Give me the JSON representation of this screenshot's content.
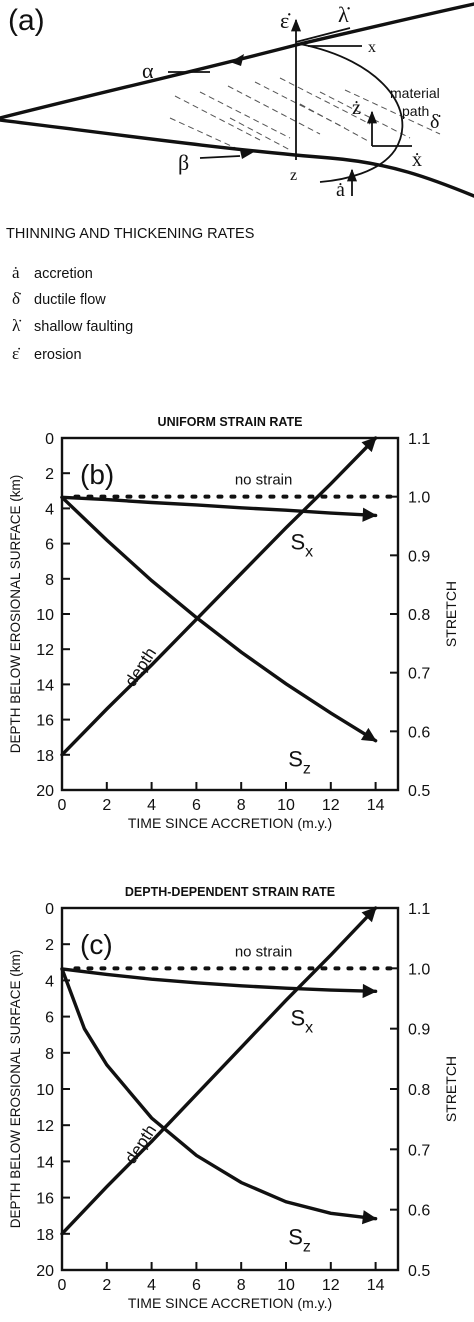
{
  "panel_a": {
    "label": "(a)",
    "symbols": {
      "epsilon_dot": "ε̇",
      "lambda_dot": "λ̇",
      "alpha": "α",
      "beta": "β",
      "z_dot": "ż",
      "x_dot": "ẋ",
      "x": "x",
      "z": "z",
      "a_dot": "ȧ",
      "delta_dot": "δ̇"
    },
    "material_path": [
      "material",
      "path"
    ]
  },
  "legend": {
    "title": "THINNING AND THICKENING RATES",
    "items": [
      {
        "symbol": "ȧ",
        "label": "accretion"
      },
      {
        "symbol": "δ̇",
        "label": "ductile flow"
      },
      {
        "symbol": "λ̇",
        "label": "shallow faulting"
      },
      {
        "symbol": "ε̇",
        "label": "erosion"
      }
    ]
  },
  "chart_data": [
    {
      "panel": "(b)",
      "type": "line",
      "title": "UNIFORM STRAIN RATE",
      "xlabel": "TIME SINCE ACCRETION (m.y.)",
      "ylabel": "DEPTH BELOW EROSIONAL SURFACE (km)",
      "y2label": "STRETCH",
      "xlim": [
        0,
        15
      ],
      "ylim": [
        20,
        0
      ],
      "y2lim": [
        0.5,
        1.1
      ],
      "xticks": [
        "0",
        "2",
        "4",
        "6",
        "8",
        "10",
        "12",
        "14"
      ],
      "yticks": [
        "0",
        "2",
        "4",
        "6",
        "8",
        "10",
        "12",
        "14",
        "16",
        "18",
        "20"
      ],
      "y2ticks": [
        "0.5",
        "0.6",
        "0.7",
        "0.8",
        "0.9",
        "1.0",
        "1.1"
      ],
      "reference": {
        "name": "no strain",
        "axis": "right",
        "value": 1.0
      },
      "series": [
        {
          "name": "depth",
          "axis": "left",
          "x": [
            0,
            2,
            4,
            6,
            8,
            10,
            12,
            14
          ],
          "y": [
            18,
            15.4,
            12.9,
            10.3,
            7.7,
            5.1,
            2.6,
            0
          ]
        },
        {
          "name": "Sx",
          "label_main": "S",
          "label_sub": "x",
          "axis": "right",
          "x": [
            0,
            2,
            4,
            6,
            8,
            10,
            12,
            14
          ],
          "y": [
            0.999,
            0.995,
            0.99,
            0.986,
            0.981,
            0.977,
            0.972,
            0.968
          ]
        },
        {
          "name": "Sz",
          "label_main": "S",
          "label_sub": "z",
          "axis": "right",
          "x": [
            0,
            2,
            4,
            6,
            8,
            10,
            12,
            14
          ],
          "y": [
            0.999,
            0.926,
            0.857,
            0.794,
            0.735,
            0.681,
            0.631,
            0.584
          ]
        }
      ]
    },
    {
      "panel": "(c)",
      "type": "line",
      "title": "DEPTH-DEPENDENT STRAIN RATE",
      "xlabel": "TIME SINCE ACCRETION (m.y.)",
      "ylabel": "DEPTH BELOW EROSIONAL SURFACE (km)",
      "y2label": "STRETCH",
      "xlim": [
        0,
        15
      ],
      "ylim": [
        20,
        0
      ],
      "y2lim": [
        0.5,
        1.1
      ],
      "xticks": [
        "0",
        "2",
        "4",
        "6",
        "8",
        "10",
        "12",
        "14"
      ],
      "yticks": [
        "0",
        "2",
        "4",
        "6",
        "8",
        "10",
        "12",
        "14",
        "16",
        "18",
        "20"
      ],
      "y2ticks": [
        "0.5",
        "0.6",
        "0.7",
        "0.8",
        "0.9",
        "1.0",
        "1.1"
      ],
      "reference": {
        "name": "no strain",
        "axis": "right",
        "value": 1.0
      },
      "series": [
        {
          "name": "depth",
          "axis": "left",
          "x": [
            0,
            2,
            4,
            6,
            8,
            10,
            12,
            14
          ],
          "y": [
            18,
            15.4,
            12.9,
            10.3,
            7.7,
            5.1,
            2.6,
            0
          ]
        },
        {
          "name": "Sx",
          "label_main": "S",
          "label_sub": "x",
          "axis": "right",
          "x": [
            0,
            2,
            4,
            6,
            8,
            10,
            12,
            14
          ],
          "y": [
            0.999,
            0.99,
            0.982,
            0.976,
            0.971,
            0.967,
            0.964,
            0.962
          ]
        },
        {
          "name": "Sz",
          "label_main": "S",
          "label_sub": "z",
          "axis": "right",
          "x": [
            0,
            1,
            2,
            4,
            6,
            8,
            10,
            12,
            14
          ],
          "y": [
            0.999,
            0.9,
            0.84,
            0.752,
            0.69,
            0.645,
            0.613,
            0.594,
            0.585
          ]
        }
      ]
    }
  ]
}
